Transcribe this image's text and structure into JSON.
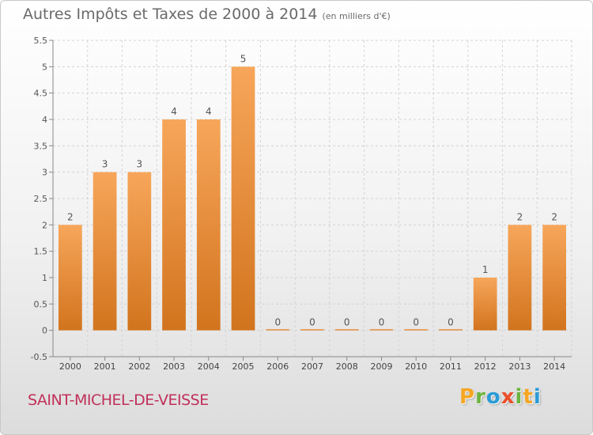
{
  "header": {
    "title": "Autres Impôts et Taxes de 2000 à 2014",
    "unit": "(en milliers d'€)"
  },
  "footer": {
    "commune": "SAINT-MICHEL-DE-VEISSE",
    "logo_letters": [
      "P",
      "r",
      "o",
      "x",
      "i",
      "t",
      "i"
    ],
    "logo_colors": [
      "#f5a623",
      "#6cb33f",
      "#2a9bd6",
      "#e94e2b",
      "#6cb33f",
      "#f5a623",
      "#2a9bd6"
    ]
  },
  "chart_data": {
    "type": "bar",
    "title": "Autres Impôts et Taxes de 2000 à 2014",
    "subtitle": "(en milliers d'€)",
    "categories": [
      "2000",
      "2001",
      "2002",
      "2003",
      "2004",
      "2005",
      "2006",
      "2007",
      "2008",
      "2009",
      "2010",
      "2011",
      "2012",
      "2013",
      "2014"
    ],
    "values": [
      2,
      3,
      3,
      4,
      4,
      5,
      0,
      0,
      0,
      0,
      0,
      0,
      1,
      2,
      2
    ],
    "data_labels": [
      "2",
      "3",
      "3",
      "4",
      "4",
      "5",
      "0",
      "0",
      "0",
      "0",
      "0",
      "0",
      "1",
      "2",
      "2"
    ],
    "y_ticks": [
      "-0.5",
      "0",
      "0.5",
      "1",
      "1.5",
      "2",
      "2.5",
      "3",
      "3.5",
      "4",
      "4.5",
      "5",
      "5.5"
    ],
    "ylim": [
      -0.5,
      5.5
    ],
    "grid": true,
    "bar_color_top": "#f7a65a",
    "bar_color_bottom": "#d2741e"
  }
}
